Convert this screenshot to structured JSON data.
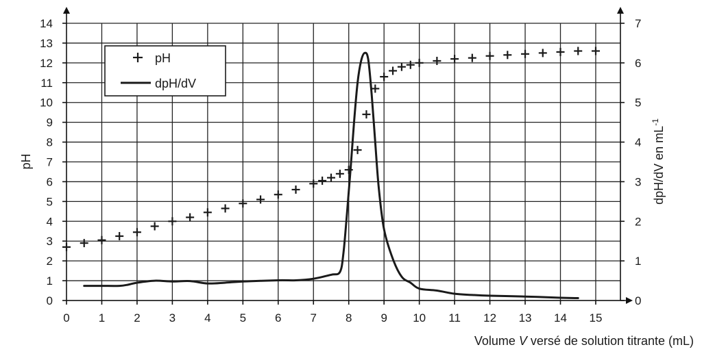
{
  "chart_data": {
    "type": "scatter+line",
    "xlabel": {
      "pre": "Volume ",
      "var": "V",
      "post": " versé de solution titrante (mL)"
    },
    "ylabel_left": "pH",
    "ylabel_right": {
      "main": "dpH/dV en mL",
      "sup": "-1"
    },
    "xlim": [
      0,
      15.7
    ],
    "ylim_left": [
      0,
      14
    ],
    "ylim_right": [
      0,
      7
    ],
    "x_ticks": [
      "0",
      "1",
      "2",
      "3",
      "4",
      "5",
      "6",
      "7",
      "8",
      "9",
      "10",
      "11",
      "12",
      "13",
      "14",
      "15"
    ],
    "y_left_ticks": [
      "0",
      "1",
      "2",
      "3",
      "4",
      "5",
      "6",
      "7",
      "8",
      "9",
      "10",
      "11",
      "12",
      "13",
      "14"
    ],
    "y_right_ticks": [
      "0",
      "1",
      "2",
      "3",
      "4",
      "5",
      "6",
      "7"
    ],
    "grid": true,
    "legend": {
      "placement": "top-left",
      "entries": [
        {
          "label": "pH",
          "marker": "plus"
        },
        {
          "label": "dpH/dV",
          "marker": "line"
        }
      ]
    },
    "series": [
      {
        "name": "pH",
        "axis": "left",
        "style": "plus",
        "points": [
          [
            0,
            2.7
          ],
          [
            0.5,
            2.9
          ],
          [
            1,
            3.05
          ],
          [
            1.5,
            3.25
          ],
          [
            2,
            3.45
          ],
          [
            2.5,
            3.75
          ],
          [
            3,
            4.0
          ],
          [
            3.5,
            4.2
          ],
          [
            4,
            4.45
          ],
          [
            4.5,
            4.65
          ],
          [
            5,
            4.9
          ],
          [
            5.5,
            5.1
          ],
          [
            6,
            5.35
          ],
          [
            6.5,
            5.6
          ],
          [
            7,
            5.9
          ],
          [
            7.25,
            6.05
          ],
          [
            7.5,
            6.2
          ],
          [
            7.75,
            6.4
          ],
          [
            8,
            6.6
          ],
          [
            8.25,
            7.6
          ],
          [
            8.5,
            9.4
          ],
          [
            8.75,
            10.7
          ],
          [
            9,
            11.3
          ],
          [
            9.25,
            11.6
          ],
          [
            9.5,
            11.8
          ],
          [
            9.75,
            11.9
          ],
          [
            10,
            12.0
          ],
          [
            10.5,
            12.1
          ],
          [
            11,
            12.2
          ],
          [
            11.5,
            12.25
          ],
          [
            12,
            12.35
          ],
          [
            12.5,
            12.4
          ],
          [
            13,
            12.45
          ],
          [
            13.5,
            12.5
          ],
          [
            14,
            12.55
          ],
          [
            14.5,
            12.6
          ],
          [
            15,
            12.6
          ]
        ]
      },
      {
        "name": "dpH/dV",
        "axis": "right",
        "style": "line",
        "points": [
          [
            0.5,
            0.37
          ],
          [
            1,
            0.37
          ],
          [
            1.5,
            0.37
          ],
          [
            1.75,
            0.4
          ],
          [
            2,
            0.45
          ],
          [
            2.5,
            0.5
          ],
          [
            3,
            0.48
          ],
          [
            3.5,
            0.49
          ],
          [
            4,
            0.43
          ],
          [
            4.5,
            0.45
          ],
          [
            5,
            0.48
          ],
          [
            6,
            0.51
          ],
          [
            6.5,
            0.51
          ],
          [
            7,
            0.55
          ],
          [
            7.5,
            0.65
          ],
          [
            7.75,
            0.72
          ],
          [
            7.85,
            1.2
          ],
          [
            7.95,
            2.2
          ],
          [
            8.05,
            3.3
          ],
          [
            8.15,
            4.5
          ],
          [
            8.25,
            5.5
          ],
          [
            8.35,
            6.05
          ],
          [
            8.45,
            6.25
          ],
          [
            8.55,
            6.1
          ],
          [
            8.65,
            5.2
          ],
          [
            8.75,
            4.0
          ],
          [
            8.85,
            2.85
          ],
          [
            9,
            1.8
          ],
          [
            9.25,
            1.05
          ],
          [
            9.5,
            0.6
          ],
          [
            9.75,
            0.45
          ],
          [
            10,
            0.3
          ],
          [
            10.5,
            0.25
          ],
          [
            11,
            0.17
          ],
          [
            11.5,
            0.14
          ],
          [
            12,
            0.12
          ],
          [
            13,
            0.1
          ],
          [
            14,
            0.07
          ],
          [
            14.5,
            0.06
          ]
        ]
      }
    ]
  }
}
